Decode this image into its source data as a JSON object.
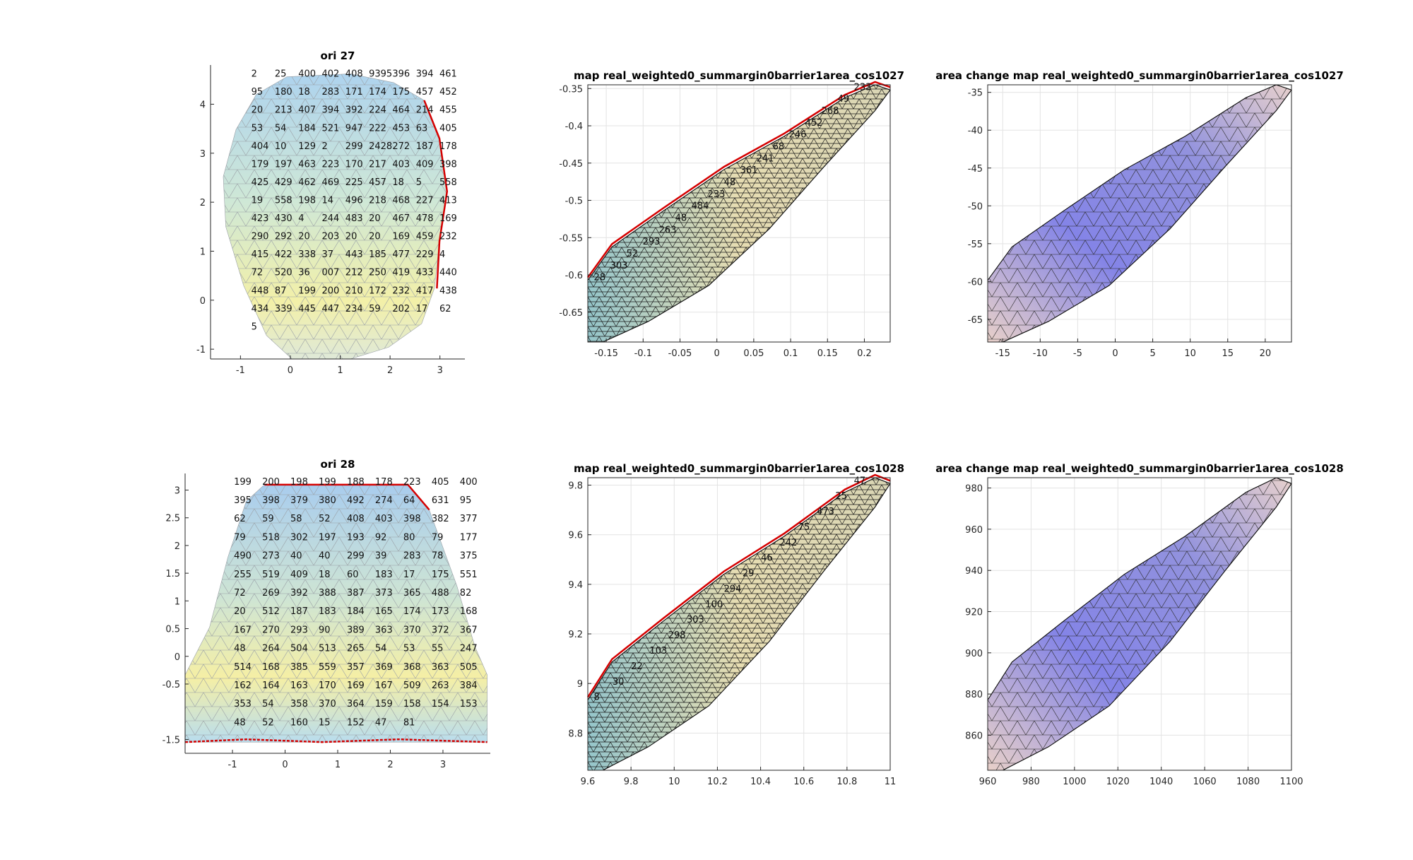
{
  "chart_data": [
    {
      "type": "mesh",
      "title": "ori 27",
      "xticks": [
        "-1",
        "0",
        "1",
        "2",
        "3"
      ],
      "yticks": [
        "4",
        "3",
        "2",
        "1",
        "0",
        "-1"
      ],
      "xlim": [
        -1.6,
        3.5
      ],
      "ylim": [
        -1.2,
        4.8
      ],
      "colormap": "pastel",
      "boundary_color": "#d40000",
      "vertex_labels": [
        "2",
        "25",
        "400",
        "402",
        "408",
        "9395",
        "396",
        "394",
        "461",
        "95",
        "180",
        "18",
        "283",
        "171",
        "174",
        "175",
        "457",
        "452",
        "20",
        "213",
        "407",
        "394",
        "392",
        "224",
        "464",
        "214",
        "455",
        "53",
        "54",
        "184",
        "521",
        "947",
        "222",
        "453",
        "63",
        "405",
        "404",
        "10",
        "129",
        "2",
        "299",
        "2428",
        "272",
        "187",
        "178",
        "179",
        "197",
        "463",
        "223",
        "170",
        "217",
        "403",
        "409",
        "398",
        "425",
        "429",
        "462",
        "469",
        "225",
        "457",
        "18",
        "5",
        "558",
        "19",
        "558",
        "198",
        "14",
        "496",
        "218",
        "468",
        "227",
        "413",
        "423",
        "430",
        "4",
        "244",
        "483",
        "20",
        "467",
        "478",
        "169",
        "290",
        "292",
        "20",
        "203",
        "20",
        "20",
        "169",
        "459",
        "232",
        "415",
        "422",
        "338",
        "37",
        "443",
        "185",
        "477",
        "229",
        "4",
        "72",
        "520",
        "36",
        "007",
        "212",
        "250",
        "419",
        "433",
        "440",
        "448",
        "87",
        "199",
        "200",
        "210",
        "172",
        "232",
        "417",
        "438",
        "434",
        "339",
        "445",
        "447",
        "234",
        "59",
        "202",
        "17",
        "62",
        "5"
      ]
    },
    {
      "type": "mesh3d",
      "title": "map real_weighted0_summargin0barrier1area_cos1027",
      "xticks": [
        "-0.15",
        "-0.1",
        "-0.05",
        "0",
        "0.05",
        "0.1",
        "0.15",
        "0.2"
      ],
      "yticks": [
        "-0.35",
        "-0.4",
        "-0.45",
        "-0.5",
        "-0.55",
        "-0.6",
        "-0.65"
      ],
      "xlim": [
        -0.175,
        0.235
      ],
      "ylim": [
        -0.69,
        -0.345
      ],
      "colormap": "yellow-cyan",
      "boundary_color": "#d40000",
      "vertex_labels": [
        "233",
        "49",
        "268",
        "452",
        "246",
        "68",
        "241",
        "361",
        "48",
        "233",
        "484",
        "48",
        "263",
        "293",
        "52",
        "303",
        "28"
      ]
    },
    {
      "type": "mesh3d",
      "title": "area change map real_weighted0_summargin0barrier1area_cos1027",
      "xticks": [
        "-15",
        "-10",
        "-5",
        "0",
        "5",
        "10",
        "15",
        "20"
      ],
      "yticks": [
        "-35",
        "-40",
        "-45",
        "-50",
        "-55",
        "-60",
        "-65"
      ],
      "xlim": [
        -17,
        23.5
      ],
      "ylim": [
        -68,
        -34
      ],
      "colormap": "blue-pink"
    },
    {
      "type": "mesh",
      "title": "ori 28",
      "xticks": [
        "-1",
        "0",
        "1",
        "2",
        "3"
      ],
      "yticks": [
        "3",
        "2.5",
        "2",
        "1.5",
        "1",
        "0.5",
        "0",
        "-0.5",
        "-1.5"
      ],
      "xlim": [
        -1.9,
        3.9
      ],
      "ylim": [
        -1.75,
        3.3
      ],
      "colormap": "pastel",
      "boundary_color": "#d40000",
      "vertex_labels": [
        "199",
        "200",
        "198",
        "199",
        "188",
        "178",
        "223",
        "405",
        "400",
        "395",
        "398",
        "379",
        "380",
        "492",
        "274",
        "64",
        "631",
        "95",
        "62",
        "59",
        "58",
        "52",
        "408",
        "403",
        "398",
        "382",
        "377",
        "79",
        "518",
        "302",
        "197",
        "193",
        "92",
        "80",
        "79",
        "177",
        "490",
        "273",
        "40",
        "40",
        "299",
        "39",
        "283",
        "78",
        "375",
        "255",
        "519",
        "409",
        "18",
        "60",
        "183",
        "17",
        "175",
        "551",
        "72",
        "269",
        "392",
        "388",
        "387",
        "373",
        "365",
        "488",
        "82",
        "20",
        "512",
        "187",
        "183",
        "184",
        "165",
        "174",
        "173",
        "168",
        "167",
        "270",
        "293",
        "90",
        "389",
        "363",
        "370",
        "372",
        "367",
        "48",
        "264",
        "504",
        "513",
        "265",
        "54",
        "53",
        "55",
        "247",
        "514",
        "168",
        "385",
        "559",
        "357",
        "369",
        "368",
        "363",
        "505",
        "162",
        "164",
        "163",
        "170",
        "169",
        "167",
        "509",
        "263",
        "384",
        "353",
        "54",
        "358",
        "370",
        "364",
        "159",
        "158",
        "154",
        "153",
        "48",
        "52",
        "160",
        "15",
        "152",
        "47",
        "81"
      ]
    },
    {
      "type": "mesh3d",
      "title": "map real_weighted0_summargin0barrier1area_cos1028",
      "xticks": [
        "9.6",
        "9.8",
        "10",
        "10.2",
        "10.4",
        "10.6",
        "10.8",
        "11"
      ],
      "yticks": [
        "9.8",
        "9.6",
        "9.4",
        "9.2",
        "9",
        "8.8"
      ],
      "xlim": [
        9.6,
        11
      ],
      "ylim": [
        8.65,
        9.83
      ],
      "colormap": "yellow-cyan",
      "boundary_color": "#d40000",
      "vertex_labels": [
        "47",
        "25",
        "473",
        "75",
        "242",
        "46",
        "29",
        "294",
        "100",
        "303",
        "298",
        "103",
        "22",
        "30",
        "8"
      ]
    },
    {
      "type": "mesh3d",
      "title": "area change map real_weighted0_summargin0barrier1area_cos1028",
      "xticks": [
        "960",
        "980",
        "1000",
        "1020",
        "1040",
        "1060",
        "1080",
        "1100"
      ],
      "yticks": [
        "980",
        "960",
        "940",
        "920",
        "900",
        "880",
        "860"
      ],
      "xlim": [
        960,
        1100
      ],
      "ylim": [
        843,
        985
      ],
      "colormap": "blue-pink"
    }
  ]
}
